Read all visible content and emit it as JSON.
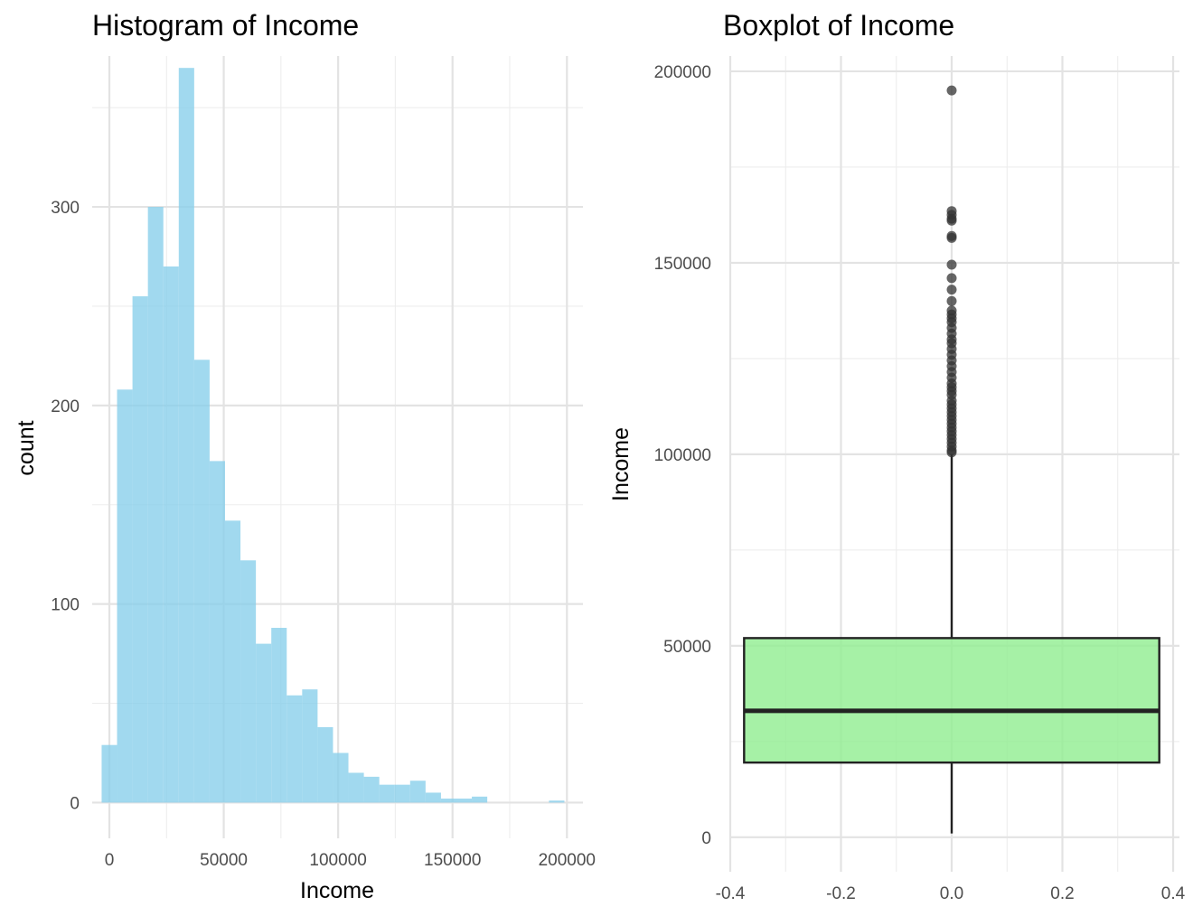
{
  "chart_data": [
    {
      "type": "bar",
      "title": "Histogram of Income",
      "xlabel": "Income",
      "ylabel": "count",
      "xlim": [
        -7500,
        207000
      ],
      "ylim": [
        -18,
        376
      ],
      "x_ticks": [
        0,
        50000,
        100000,
        150000,
        200000
      ],
      "x_tick_labels": [
        "0",
        "50000",
        "100000",
        "150000",
        "200000"
      ],
      "y_ticks": [
        0,
        100,
        200,
        300
      ],
      "y_tick_labels": [
        "0",
        "100",
        "200",
        "300"
      ],
      "bin_width": 6742,
      "bin_centers": [
        0,
        6742,
        13484,
        20226,
        26968,
        33710,
        40452,
        47194,
        53936,
        60678,
        67420,
        74162,
        80904,
        87646,
        94388,
        101130,
        107872,
        114614,
        121356,
        128098,
        134840,
        141582,
        148324,
        155066,
        161808,
        168550,
        175292,
        182034,
        188776,
        195518
      ],
      "values": [
        29,
        208,
        255,
        300,
        270,
        370,
        223,
        172,
        142,
        122,
        80,
        88,
        54,
        57,
        38,
        25,
        15,
        13,
        9,
        9,
        11,
        5,
        2,
        2,
        3,
        0,
        0,
        0,
        0,
        1
      ],
      "bar_color": "#87ceeb",
      "grid": true
    },
    {
      "type": "box",
      "title": "Boxplot of Income",
      "xlabel": "",
      "ylabel": "Income",
      "xlim": [
        -0.4,
        0.4
      ],
      "ylim": [
        -5000,
        204000
      ],
      "x_ticks": [
        -0.4,
        -0.2,
        0.0,
        0.2,
        0.4
      ],
      "x_tick_labels": [
        "-0.4",
        "-0.2",
        "0.0",
        "0.2",
        "0.4"
      ],
      "y_ticks": [
        0,
        50000,
        100000,
        150000,
        200000
      ],
      "y_tick_labels": [
        "0",
        "50000",
        "100000",
        "150000",
        "200000"
      ],
      "box": {
        "x_left": -0.375,
        "x_right": 0.375,
        "whisker_low": 1000,
        "q1": 19500,
        "median": 33000,
        "q3": 52000,
        "whisker_high": 100000
      },
      "outliers": [
        195000,
        163500,
        162500,
        161500,
        161000,
        157000,
        156500,
        149500,
        146000,
        143000,
        140000,
        137500,
        136500,
        135500,
        134500,
        133000,
        131500,
        130000,
        129000,
        127500,
        126000,
        124500,
        123000,
        121500,
        120000,
        118500,
        117500,
        116500,
        115500,
        114000,
        113000,
        112000,
        111000,
        110000,
        109000,
        108000,
        107000,
        106000,
        105000,
        104000,
        103000,
        102000,
        101000,
        100500
      ],
      "box_color": "#90ee90",
      "grid": true
    }
  ]
}
